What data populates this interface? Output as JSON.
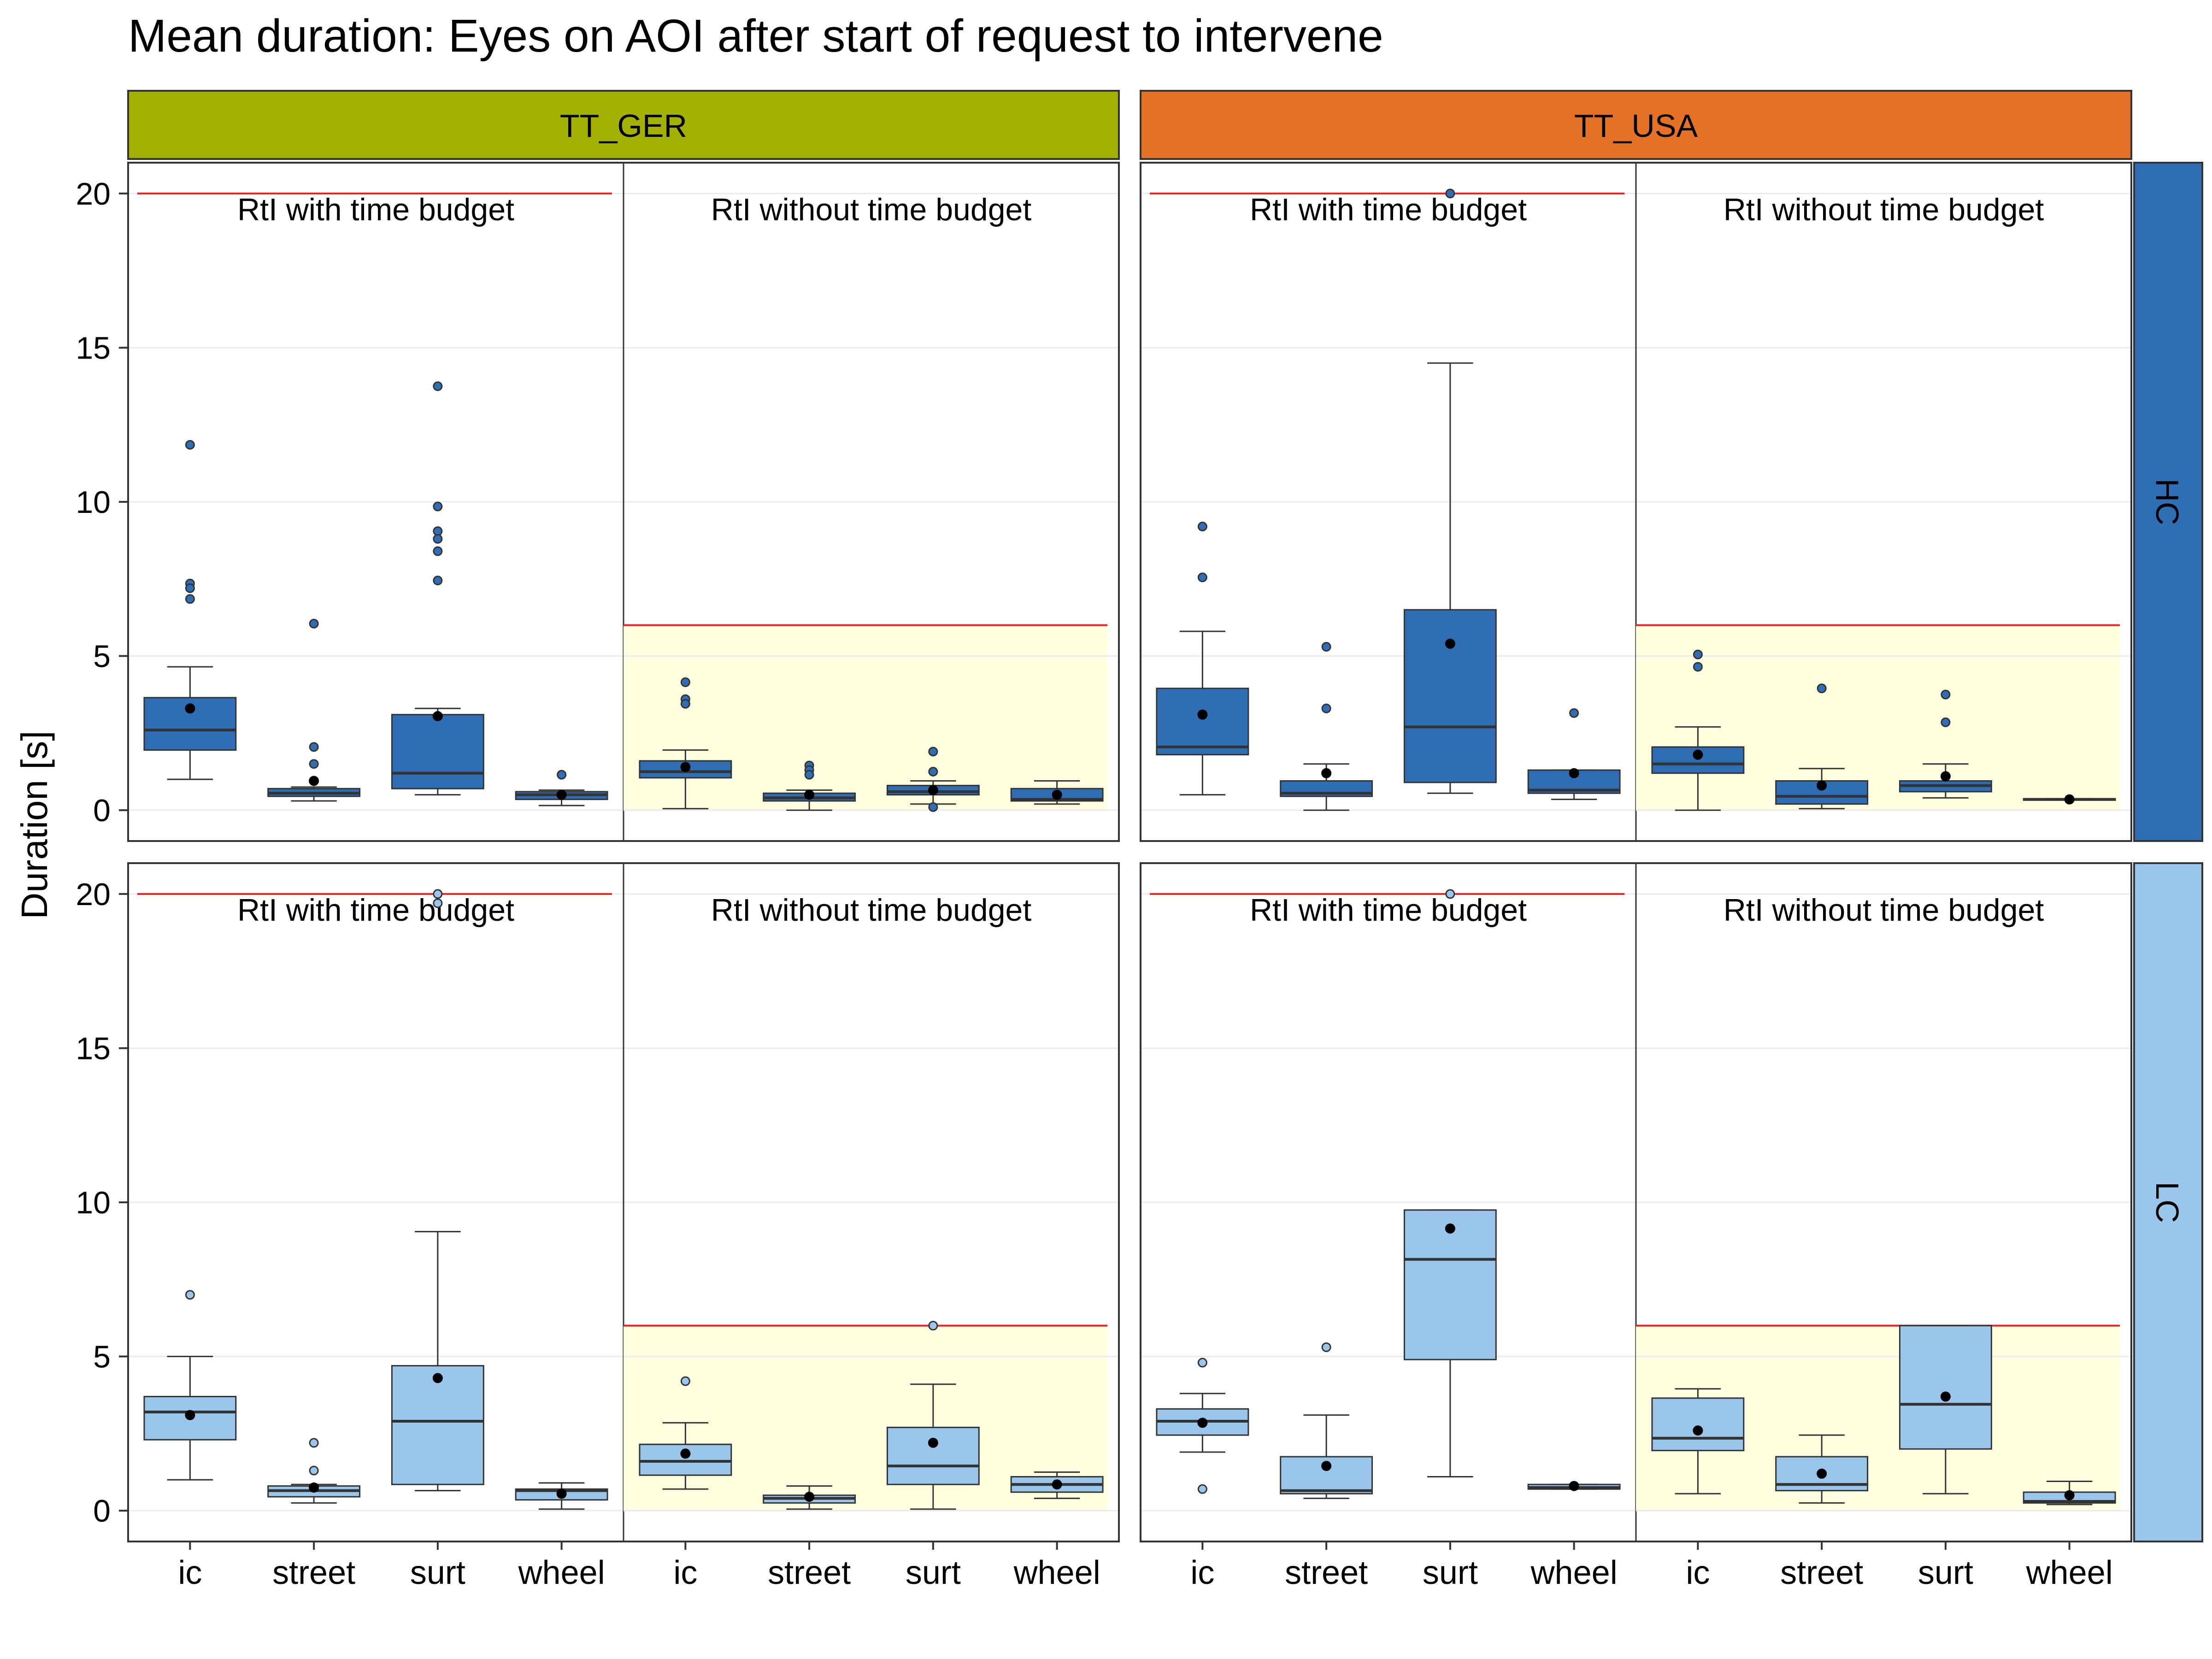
{
  "chart_data": {
    "type": "boxplot",
    "title": "Mean duration: Eyes on AOI after start of request to intervene",
    "ylabel": "Duration [s]",
    "xlabel": "",
    "ylim": [
      -1,
      21
    ],
    "yticks": [
      0,
      5,
      10,
      15,
      20
    ],
    "column_facets": [
      {
        "label": "TT_GER",
        "color": "#A3B000"
      },
      {
        "label": "TT_USA",
        "color": "#E37227"
      }
    ],
    "row_facets": [
      {
        "label": "HC",
        "color": "#2F6EB4"
      },
      {
        "label": "LC",
        "color": "#9BC6EB"
      }
    ],
    "sections": [
      {
        "label": "RtI with time budget",
        "limit": 20,
        "shaded": false
      },
      {
        "label": "RtI without time budget",
        "limit": 6,
        "shaded": true,
        "shade_color": "#FFFFE0"
      }
    ],
    "categories": [
      "ic",
      "street",
      "surt",
      "wheel"
    ],
    "panels": [
      {
        "row": "HC",
        "col": "TT_GER",
        "sections": [
          {
            "boxes": [
              {
                "cat": "ic",
                "q1": 1.95,
                "median": 2.6,
                "q3": 3.65,
                "wlo": 1.0,
                "whi": 4.65,
                "mean": 3.3,
                "outliers": [
                  11.85,
                  7.35,
                  7.2,
                  6.85
                ]
              },
              {
                "cat": "street",
                "q1": 0.45,
                "median": 0.55,
                "q3": 0.7,
                "wlo": 0.3,
                "whi": 0.75,
                "mean": 0.95,
                "outliers": [
                  6.05,
                  2.05,
                  1.5,
                  0.95
                ]
              },
              {
                "cat": "surt",
                "q1": 0.7,
                "median": 1.2,
                "q3": 3.1,
                "wlo": 0.5,
                "whi": 3.3,
                "mean": 3.05,
                "outliers": [
                  13.75,
                  9.85,
                  9.05,
                  8.8,
                  8.4,
                  7.45
                ]
              },
              {
                "cat": "wheel",
                "q1": 0.35,
                "median": 0.5,
                "q3": 0.6,
                "wlo": 0.15,
                "whi": 0.65,
                "mean": 0.5,
                "outliers": [
                  1.15
                ]
              }
            ]
          },
          {
            "boxes": [
              {
                "cat": "ic",
                "q1": 1.05,
                "median": 1.25,
                "q3": 1.6,
                "wlo": 0.05,
                "whi": 1.95,
                "mean": 1.4,
                "outliers": [
                  4.15,
                  3.6,
                  3.45
                ]
              },
              {
                "cat": "street",
                "q1": 0.3,
                "median": 0.4,
                "q3": 0.55,
                "wlo": 0.0,
                "whi": 0.65,
                "mean": 0.5,
                "outliers": [
                  1.45,
                  1.3,
                  1.15
                ]
              },
              {
                "cat": "surt",
                "q1": 0.5,
                "median": 0.6,
                "q3": 0.8,
                "wlo": 0.2,
                "whi": 0.95,
                "mean": 0.65,
                "outliers": [
                  1.9,
                  1.25,
                  0.1
                ]
              },
              {
                "cat": "wheel",
                "q1": 0.3,
                "median": 0.35,
                "q3": 0.7,
                "wlo": 0.2,
                "whi": 0.95,
                "mean": 0.5,
                "outliers": []
              }
            ]
          }
        ]
      },
      {
        "row": "HC",
        "col": "TT_USA",
        "sections": [
          {
            "boxes": [
              {
                "cat": "ic",
                "q1": 1.8,
                "median": 2.05,
                "q3": 3.95,
                "wlo": 0.5,
                "whi": 5.8,
                "mean": 3.1,
                "outliers": [
                  9.2,
                  7.55
                ]
              },
              {
                "cat": "street",
                "q1": 0.45,
                "median": 0.55,
                "q3": 0.95,
                "wlo": 0.0,
                "whi": 1.5,
                "mean": 1.2,
                "outliers": [
                  5.3,
                  3.3
                ]
              },
              {
                "cat": "surt",
                "q1": 0.9,
                "median": 2.7,
                "q3": 6.5,
                "wlo": 0.55,
                "whi": 14.5,
                "mean": 5.4,
                "outliers": [
                  20.0
                ]
              },
              {
                "cat": "wheel",
                "q1": 0.55,
                "median": 0.65,
                "q3": 1.3,
                "wlo": 0.35,
                "whi": 1.3,
                "mean": 1.2,
                "outliers": [
                  3.15
                ]
              }
            ]
          },
          {
            "boxes": [
              {
                "cat": "ic",
                "q1": 1.2,
                "median": 1.5,
                "q3": 2.05,
                "wlo": 0.0,
                "whi": 2.7,
                "mean": 1.8,
                "outliers": [
                  5.05,
                  4.65
                ]
              },
              {
                "cat": "street",
                "q1": 0.2,
                "median": 0.45,
                "q3": 0.95,
                "wlo": 0.05,
                "whi": 1.35,
                "mean": 0.8,
                "outliers": [
                  3.95
                ]
              },
              {
                "cat": "surt",
                "q1": 0.6,
                "median": 0.8,
                "q3": 0.95,
                "wlo": 0.4,
                "whi": 1.5,
                "mean": 1.1,
                "outliers": [
                  3.75,
                  2.85
                ]
              },
              {
                "cat": "wheel",
                "q1": 0.33,
                "median": 0.35,
                "q3": 0.37,
                "wlo": 0.33,
                "whi": 0.37,
                "mean": 0.35,
                "outliers": []
              }
            ]
          }
        ]
      },
      {
        "row": "LC",
        "col": "TT_GER",
        "sections": [
          {
            "boxes": [
              {
                "cat": "ic",
                "q1": 2.3,
                "median": 3.2,
                "q3": 3.7,
                "wlo": 1.0,
                "whi": 5.0,
                "mean": 3.1,
                "outliers": [
                  7.0
                ]
              },
              {
                "cat": "street",
                "q1": 0.45,
                "median": 0.65,
                "q3": 0.8,
                "wlo": 0.25,
                "whi": 0.85,
                "mean": 0.75,
                "outliers": [
                  2.2,
                  1.3
                ]
              },
              {
                "cat": "surt",
                "q1": 0.85,
                "median": 2.9,
                "q3": 4.7,
                "wlo": 0.65,
                "whi": 9.05,
                "mean": 4.3,
                "outliers": [
                  20.0,
                  19.7
                ]
              },
              {
                "cat": "wheel",
                "q1": 0.35,
                "median": 0.65,
                "q3": 0.7,
                "wlo": 0.05,
                "whi": 0.9,
                "mean": 0.55,
                "outliers": []
              }
            ]
          },
          {
            "boxes": [
              {
                "cat": "ic",
                "q1": 1.15,
                "median": 1.6,
                "q3": 2.15,
                "wlo": 0.7,
                "whi": 2.85,
                "mean": 1.85,
                "outliers": [
                  4.2
                ]
              },
              {
                "cat": "street",
                "q1": 0.25,
                "median": 0.4,
                "q3": 0.5,
                "wlo": 0.05,
                "whi": 0.8,
                "mean": 0.45,
                "outliers": []
              },
              {
                "cat": "surt",
                "q1": 0.85,
                "median": 1.45,
                "q3": 2.7,
                "wlo": 0.05,
                "whi": 4.1,
                "mean": 2.2,
                "outliers": [
                  6.0
                ]
              },
              {
                "cat": "wheel",
                "q1": 0.6,
                "median": 0.85,
                "q3": 1.1,
                "wlo": 0.4,
                "whi": 1.25,
                "mean": 0.85,
                "outliers": []
              }
            ]
          }
        ]
      },
      {
        "row": "LC",
        "col": "TT_USA",
        "sections": [
          {
            "boxes": [
              {
                "cat": "ic",
                "q1": 2.45,
                "median": 2.9,
                "q3": 3.3,
                "wlo": 1.9,
                "whi": 3.8,
                "mean": 2.85,
                "outliers": [
                  4.8,
                  0.7
                ]
              },
              {
                "cat": "street",
                "q1": 0.55,
                "median": 0.65,
                "q3": 1.75,
                "wlo": 0.4,
                "whi": 3.1,
                "mean": 1.45,
                "outliers": [
                  5.3
                ]
              },
              {
                "cat": "surt",
                "q1": 4.9,
                "median": 8.15,
                "q3": 9.75,
                "wlo": 1.1,
                "whi": 9.75,
                "mean": 9.15,
                "outliers": [
                  20.0
                ]
              },
              {
                "cat": "wheel",
                "q1": 0.7,
                "median": 0.75,
                "q3": 0.85,
                "wlo": 0.7,
                "whi": 0.85,
                "mean": 0.8,
                "outliers": []
              }
            ]
          },
          {
            "boxes": [
              {
                "cat": "ic",
                "q1": 1.95,
                "median": 2.35,
                "q3": 3.65,
                "wlo": 0.55,
                "whi": 3.95,
                "mean": 2.6,
                "outliers": []
              },
              {
                "cat": "street",
                "q1": 0.65,
                "median": 0.85,
                "q3": 1.75,
                "wlo": 0.25,
                "whi": 2.45,
                "mean": 1.2,
                "outliers": []
              },
              {
                "cat": "surt",
                "q1": 2.0,
                "median": 3.45,
                "q3": 6.0,
                "wlo": 0.55,
                "whi": 6.0,
                "mean": 3.7,
                "outliers": []
              },
              {
                "cat": "wheel",
                "q1": 0.25,
                "median": 0.3,
                "q3": 0.6,
                "wlo": 0.2,
                "whi": 0.95,
                "mean": 0.5,
                "outliers": []
              }
            ]
          }
        ]
      }
    ]
  }
}
